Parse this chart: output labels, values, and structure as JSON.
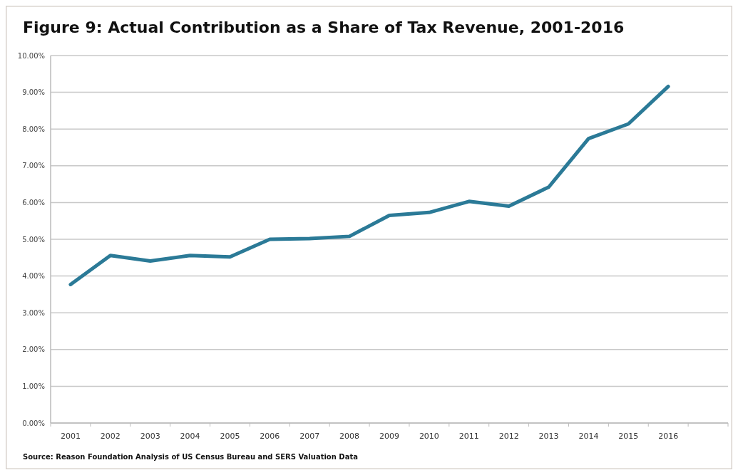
{
  "chart_data": {
    "type": "line",
    "title": "Figure 9: Actual Contribution as a Share of Tax Revenue, 2001-2016",
    "annotations": [
      "Source: Reason Foundation Analysis of US Census Bureau and SERS Valuation Data"
    ],
    "categories": [
      "2001",
      "2002",
      "2003",
      "2004",
      "2005",
      "2006",
      "2007",
      "2008",
      "2009",
      "2010",
      "2011",
      "2012",
      "2013",
      "2014",
      "2015",
      "2016",
      null
    ],
    "series": [
      {
        "color": "#2b7a97",
        "values": [
          3.77,
          4.56,
          4.41,
          4.56,
          4.52,
          5.0,
          5.02,
          5.08,
          5.65,
          5.73,
          6.03,
          5.9,
          6.42,
          7.74,
          8.14,
          9.16,
          null
        ]
      }
    ],
    "ylim": [
      0,
      10
    ],
    "yticks": [
      {
        "value": 0,
        "label": "0.00%"
      },
      {
        "value": 1,
        "label": "1.00%"
      },
      {
        "value": 2,
        "label": "2.00%"
      },
      {
        "value": 3,
        "label": "3.00%"
      },
      {
        "value": 4,
        "label": "4.00%"
      },
      {
        "value": 5,
        "label": "5.00%"
      },
      {
        "value": 6,
        "label": "6.00%"
      },
      {
        "value": 7,
        "label": "7.00%"
      },
      {
        "value": 8,
        "label": "8.00%"
      },
      {
        "value": 9,
        "label": "9.00%"
      },
      {
        "value": 10,
        "label": "10.00%"
      }
    ],
    "grid": "y",
    "marker": "none",
    "line_style": "solid"
  }
}
